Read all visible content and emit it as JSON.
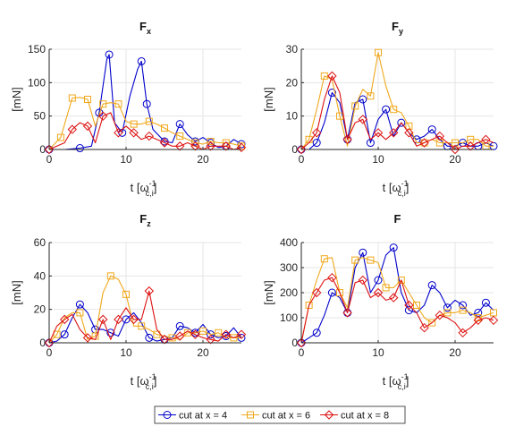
{
  "colors": {
    "s4": "#0000cc",
    "s6": "#f0a81c",
    "s8": "#dd1111",
    "grid": "#e4e4e4",
    "axis": "#262626"
  },
  "legend": [
    {
      "label": "cut at x = 4",
      "color": "#0000cc",
      "marker": "circle"
    },
    {
      "label": "cut at x = 6",
      "color": "#f0a81c",
      "marker": "square"
    },
    {
      "label": "cut at x = 8",
      "color": "#dd1111",
      "marker": "diamond"
    }
  ],
  "chart_data": [
    {
      "type": "line",
      "title": "F",
      "title_sub": "x",
      "ylabel": "[mN]",
      "xlabel_main": "t [",
      "xlabel_sym": "ω",
      "xlabel_sup": "-1",
      "xlabel_sub": "c,i",
      "xlabel_close": "]",
      "xlim": [
        0,
        25
      ],
      "ylim": [
        0,
        150
      ],
      "xticks": [
        0,
        10,
        20
      ],
      "yticks": [
        0,
        50,
        100,
        150
      ],
      "grid": true,
      "legend": "bottom",
      "series": [
        {
          "name": "cut at x = 4",
          "marker": "circle",
          "x": [
            0,
            2,
            4,
            5.5,
            6.5,
            7.5,
            7.8,
            8.5,
            9.5,
            10.5,
            11.5,
            12,
            12.7,
            13.5,
            15,
            16,
            17,
            18,
            19,
            20,
            21,
            22,
            23,
            24,
            25
          ],
          "y": [
            0,
            0,
            2,
            5,
            55,
            135,
            142,
            40,
            25,
            80,
            120,
            132,
            68,
            30,
            12,
            10,
            38,
            22,
            12,
            18,
            10,
            3,
            5,
            15,
            8
          ],
          "markers": [
            0,
            2,
            4,
            6,
            8,
            11,
            12,
            14,
            16,
            18,
            20,
            22,
            24
          ]
        },
        {
          "name": "cut at x = 6",
          "marker": "square",
          "x": [
            0,
            1.5,
            3,
            4,
            5,
            6,
            7,
            8,
            9,
            10,
            11,
            12,
            13,
            14,
            15,
            16,
            17,
            18,
            19,
            20,
            21,
            22,
            23,
            24,
            25
          ],
          "y": [
            0,
            18,
            77,
            78,
            75,
            35,
            68,
            70,
            68,
            42,
            38,
            38,
            42,
            38,
            32,
            25,
            20,
            15,
            10,
            8,
            12,
            10,
            10,
            8,
            5
          ],
          "markers": [
            1,
            2,
            4,
            6,
            8,
            10,
            12,
            14,
            16,
            18,
            20,
            22,
            24
          ]
        },
        {
          "name": "cut at x = 8",
          "marker": "diamond",
          "x": [
            0,
            1,
            2,
            3,
            4,
            5,
            6,
            7,
            8,
            9,
            10,
            11,
            12,
            13,
            14,
            15,
            16,
            17,
            18,
            19,
            20,
            21,
            22,
            23,
            24,
            25
          ],
          "y": [
            0,
            5,
            10,
            30,
            40,
            35,
            10,
            50,
            55,
            25,
            35,
            25,
            15,
            20,
            15,
            10,
            5,
            5,
            10,
            5,
            0,
            5,
            5,
            5,
            0,
            3
          ],
          "markers": [
            0,
            3,
            5,
            7,
            9,
            11,
            13,
            15,
            17,
            19,
            21,
            23,
            25
          ]
        }
      ]
    },
    {
      "type": "line",
      "title": "F",
      "title_sub": "y",
      "ylabel": "[mN]",
      "xlabel_main": "t [",
      "xlabel_sym": "ω",
      "xlabel_sup": "-1",
      "xlabel_sub": "c,i",
      "xlabel_close": "]",
      "xlim": [
        0,
        25
      ],
      "ylim": [
        0,
        30
      ],
      "xticks": [
        0,
        10,
        20
      ],
      "yticks": [
        0,
        10,
        20,
        30
      ],
      "grid": true,
      "legend": "bottom",
      "series": [
        {
          "name": "cut at x = 4",
          "marker": "circle",
          "x": [
            0,
            1,
            2,
            3,
            4,
            5,
            6,
            7,
            8,
            9,
            10,
            11,
            12,
            13,
            14,
            15,
            16,
            17,
            18,
            19,
            20,
            21,
            22,
            23,
            24,
            25
          ],
          "y": [
            0,
            0,
            2,
            8,
            17,
            14,
            3,
            14,
            15,
            2,
            9,
            12,
            4,
            8,
            5,
            3,
            4,
            6,
            3,
            1,
            1,
            2,
            1,
            1,
            2,
            1
          ],
          "markers": [
            0,
            2,
            4,
            6,
            8,
            9,
            11,
            13,
            15,
            17,
            19,
            21,
            23,
            25
          ]
        },
        {
          "name": "cut at x = 6",
          "marker": "square",
          "x": [
            0,
            1,
            2,
            3,
            4,
            5,
            6,
            7,
            8,
            9,
            10,
            11,
            12,
            13,
            14,
            15,
            16,
            17,
            18,
            19,
            20,
            21,
            22,
            23,
            24,
            25
          ],
          "y": [
            0,
            3,
            12,
            22,
            21,
            10,
            1,
            13,
            18,
            16,
            29,
            19,
            12,
            11,
            7,
            2,
            2,
            3,
            2,
            2,
            2,
            2,
            3,
            3,
            1,
            1
          ],
          "markers": [
            1,
            3,
            5,
            7,
            9,
            10,
            12,
            14,
            16,
            18,
            20,
            22,
            24
          ]
        },
        {
          "name": "cut at x = 8",
          "marker": "diamond",
          "x": [
            0,
            1,
            2,
            3,
            4,
            5,
            6,
            7,
            8,
            9,
            10,
            11,
            12,
            13,
            14,
            15,
            16,
            17,
            18,
            19,
            20,
            21,
            22,
            23,
            24,
            25
          ],
          "y": [
            0,
            2,
            5,
            15,
            22,
            17,
            3,
            8,
            9,
            3,
            5,
            3,
            5,
            8,
            5,
            1,
            2,
            3,
            4,
            2,
            0,
            1,
            1,
            2,
            3,
            2
          ],
          "markers": [
            0,
            2,
            4,
            6,
            8,
            10,
            12,
            14,
            16,
            18,
            20,
            22,
            24
          ]
        }
      ]
    },
    {
      "type": "line",
      "title": "F",
      "title_sub": "z",
      "ylabel": "[mN]",
      "xlabel_main": "t [",
      "xlabel_sym": "ω",
      "xlabel_sup": "-1",
      "xlabel_sub": "c,i",
      "xlabel_close": "]",
      "xlim": [
        0,
        25
      ],
      "ylim": [
        0,
        60
      ],
      "xticks": [
        0,
        10,
        20
      ],
      "yticks": [
        0,
        20,
        40,
        60
      ],
      "grid": true,
      "legend": "bottom",
      "series": [
        {
          "name": "cut at x = 4",
          "marker": "circle",
          "x": [
            0,
            1,
            2,
            3,
            4,
            5,
            6,
            7,
            8,
            9,
            10,
            11,
            12,
            13,
            14,
            15,
            16,
            17,
            18,
            19,
            20,
            21,
            22,
            23,
            24,
            25
          ],
          "y": [
            0,
            1,
            5,
            15,
            23,
            18,
            8,
            8,
            6,
            4,
            14,
            18,
            12,
            3,
            1,
            2,
            3,
            10,
            9,
            6,
            11,
            5,
            3,
            4,
            9,
            3
          ],
          "markers": [
            0,
            2,
            4,
            6,
            8,
            10,
            13,
            15,
            17,
            19,
            21,
            23,
            25
          ]
        },
        {
          "name": "cut at x = 6",
          "marker": "square",
          "x": [
            0,
            1,
            2,
            3,
            4,
            5,
            6,
            7,
            8,
            9,
            10,
            11,
            12,
            13,
            14,
            15,
            16,
            17,
            18,
            19,
            20,
            21,
            22,
            23,
            24,
            25
          ],
          "y": [
            0,
            5,
            15,
            18,
            18,
            2,
            4,
            30,
            40,
            38,
            29,
            10,
            10,
            8,
            5,
            4,
            3,
            2,
            6,
            6,
            7,
            5,
            6,
            3,
            3,
            3
          ],
          "markers": [
            1,
            4,
            6,
            8,
            10,
            12,
            14,
            16,
            18,
            20,
            22,
            24
          ]
        },
        {
          "name": "cut at x = 8",
          "marker": "diamond",
          "x": [
            0,
            1,
            2,
            3,
            4,
            5,
            6,
            7,
            8,
            9,
            10,
            11,
            12,
            13,
            14,
            15,
            16,
            17,
            18,
            19,
            20,
            21,
            22,
            23,
            24,
            25
          ],
          "y": [
            0,
            10,
            14,
            17,
            8,
            3,
            2,
            14,
            2,
            14,
            21,
            14,
            14,
            31,
            8,
            2,
            2,
            4,
            7,
            5,
            3,
            2,
            1,
            5,
            3,
            5
          ],
          "markers": [
            0,
            2,
            5,
            7,
            9,
            11,
            13,
            15,
            17,
            19,
            21,
            23,
            25
          ]
        }
      ]
    },
    {
      "type": "line",
      "title": "F",
      "title_sub": "",
      "ylabel": "[mN]",
      "xlabel_main": "t [",
      "xlabel_sym": "ω",
      "xlabel_sup": "-1",
      "xlabel_sub": "c,i",
      "xlabel_close": "]",
      "xlim": [
        0,
        25
      ],
      "ylim": [
        0,
        400
      ],
      "xticks": [
        0,
        10,
        20
      ],
      "yticks": [
        0,
        100,
        200,
        300,
        400
      ],
      "grid": true,
      "legend": "bottom",
      "series": [
        {
          "name": "cut at x = 4",
          "marker": "circle",
          "x": [
            0,
            1,
            2,
            3,
            4,
            5,
            6,
            7,
            8,
            9,
            10,
            11,
            12,
            13,
            14,
            15,
            16,
            17,
            18,
            19,
            20,
            21,
            22,
            23,
            24,
            25
          ],
          "y": [
            0,
            20,
            40,
            110,
            200,
            180,
            120,
            300,
            360,
            200,
            250,
            350,
            380,
            200,
            130,
            120,
            150,
            230,
            200,
            140,
            170,
            150,
            110,
            120,
            160,
            130
          ],
          "markers": [
            0,
            2,
            4,
            6,
            8,
            10,
            12,
            14,
            17,
            19,
            21,
            23,
            24
          ]
        },
        {
          "name": "cut at x = 6",
          "marker": "square",
          "x": [
            0,
            1,
            2,
            3,
            4,
            5,
            6,
            7,
            8,
            9,
            10,
            11,
            12,
            13,
            14,
            15,
            16,
            17,
            18,
            19,
            20,
            21,
            22,
            23,
            24,
            25
          ],
          "y": [
            0,
            150,
            250,
            335,
            340,
            200,
            140,
            330,
            340,
            330,
            320,
            220,
            220,
            250,
            200,
            150,
            100,
            80,
            110,
            120,
            120,
            130,
            120,
            100,
            110,
            120
          ],
          "markers": [
            1,
            3,
            5,
            7,
            9,
            11,
            13,
            15,
            17,
            19,
            21,
            23,
            25
          ]
        },
        {
          "name": "cut at x = 8",
          "marker": "diamond",
          "x": [
            0,
            1,
            2,
            3,
            4,
            5,
            6,
            7,
            8,
            9,
            10,
            11,
            12,
            13,
            14,
            15,
            16,
            17,
            18,
            19,
            20,
            21,
            22,
            23,
            24,
            25
          ],
          "y": [
            0,
            150,
            200,
            250,
            260,
            200,
            120,
            240,
            250,
            180,
            200,
            170,
            180,
            250,
            150,
            120,
            60,
            80,
            110,
            100,
            80,
            40,
            60,
            90,
            100,
            90
          ],
          "markers": [
            0,
            2,
            4,
            6,
            8,
            10,
            12,
            14,
            16,
            18,
            21,
            23,
            25
          ]
        }
      ]
    }
  ]
}
